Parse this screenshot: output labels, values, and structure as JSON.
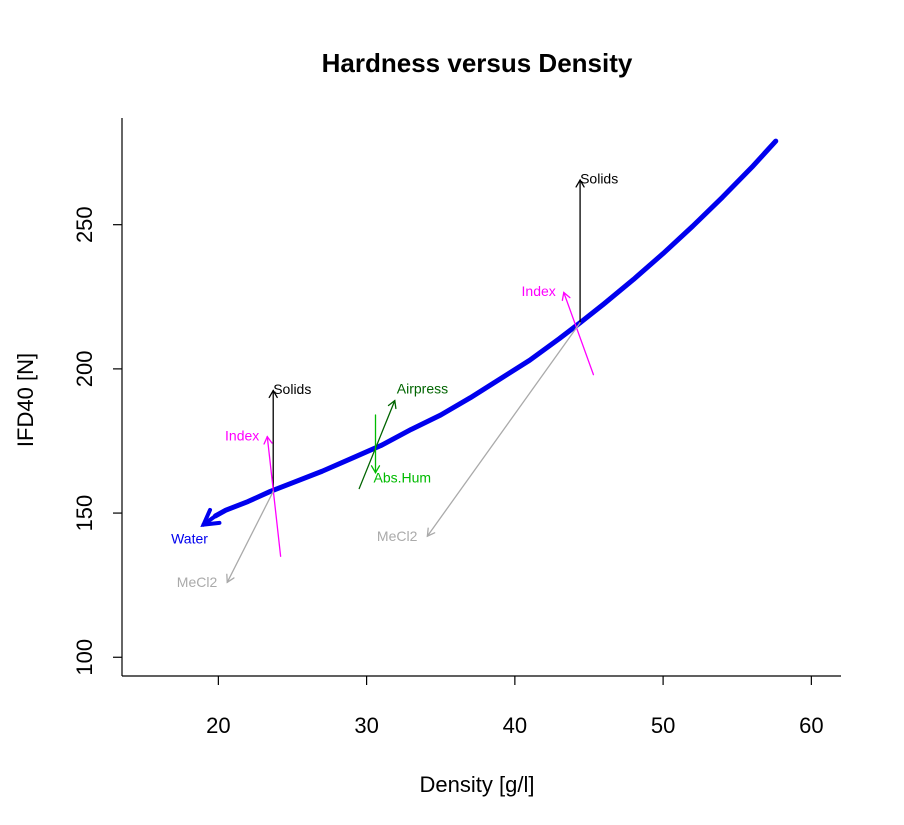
{
  "chart_data": {
    "type": "line",
    "title": "Hardness versus Density",
    "xlabel": "Density [g/l]",
    "ylabel": "IFD40 [N]",
    "xlim": [
      13.5,
      62
    ],
    "ylim": [
      93.5,
      287
    ],
    "x_ticks": [
      20,
      30,
      40,
      50,
      60
    ],
    "y_ticks": [
      100,
      150,
      200,
      250
    ],
    "grid": false,
    "colors": {
      "curve": "#0000ee",
      "water": "#0000ee",
      "solids": "#000000",
      "index": "#ff00ff",
      "mecl2": "#aaaaaa",
      "airpress": "#006400",
      "abshum": "#00bb00"
    },
    "curve": {
      "x": [
        19.8,
        20.5,
        22,
        23.5,
        25,
        27,
        29,
        31,
        33,
        35,
        37,
        39,
        41,
        43,
        44.4,
        46,
        48,
        50,
        52,
        54,
        56,
        57.6
      ],
      "y": [
        149,
        151,
        154,
        157.5,
        160.5,
        164.5,
        169,
        173.5,
        179,
        184,
        190,
        196.5,
        203,
        210.5,
        216,
        222.5,
        231,
        240,
        249.5,
        259.5,
        270,
        279
      ]
    },
    "water_arrow": {
      "label": "Water",
      "from": [
        19.8,
        149
      ],
      "to": [
        19.0,
        146
      ]
    },
    "arrows": [
      {
        "label": "Solids",
        "group": "solids",
        "from": [
          23.7,
          157.5
        ],
        "to": [
          23.7,
          192.5
        ]
      },
      {
        "label": "Index",
        "group": "index",
        "from": [
          24.2,
          135
        ],
        "to": [
          23.3,
          176.5
        ]
      },
      {
        "label": "MeCl2",
        "group": "mecl2",
        "from": [
          23.7,
          157.5
        ],
        "to": [
          20.6,
          126
        ]
      },
      {
        "label": "Airpress",
        "group": "airpress",
        "from": [
          29.5,
          158.5
        ],
        "to": [
          31.9,
          189
        ]
      },
      {
        "label": "Abs.Hum",
        "group": "abshum",
        "from": [
          30.6,
          184
        ],
        "to": [
          30.6,
          164
        ]
      },
      {
        "label": "Solids",
        "group": "solids",
        "from": [
          44.4,
          216
        ],
        "to": [
          44.4,
          265.5
        ]
      },
      {
        "label": "Index",
        "group": "index",
        "from": [
          45.3,
          198
        ],
        "to": [
          43.3,
          226.5
        ]
      },
      {
        "label": "MeCl2",
        "group": "mecl2",
        "from": [
          44.4,
          216
        ],
        "to": [
          34.1,
          142
        ]
      }
    ]
  }
}
